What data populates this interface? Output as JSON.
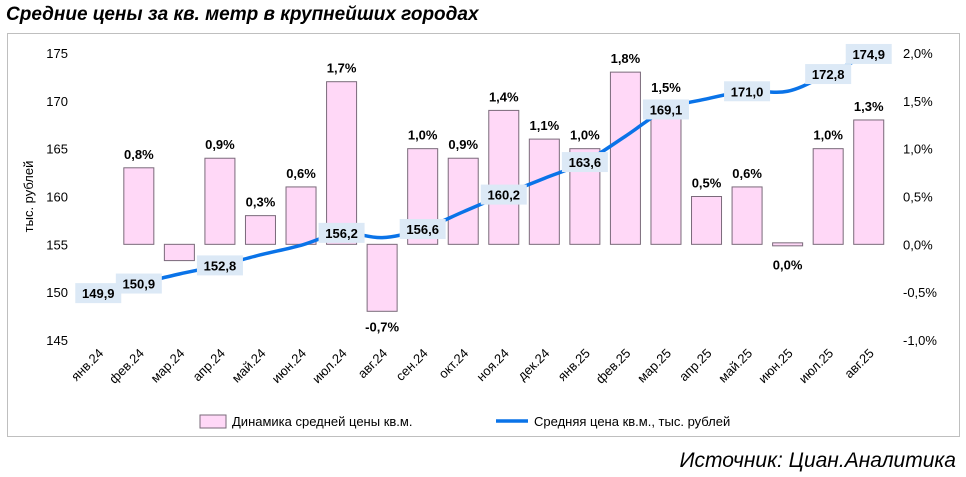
{
  "title": "Средние цены за кв. метр в крупнейших городах",
  "source": "Источник: Циан.Аналитика",
  "colors": {
    "bar_fill": "#ffd8f7",
    "bar_stroke": "#7a6a7a",
    "line": "#0a73e8",
    "label_bg": "#dce9f6"
  },
  "chart_data": {
    "type": "bar",
    "categories": [
      "янв.24",
      "фев.24",
      "мар.24",
      "апр.24",
      "май.24",
      "июн.24",
      "июл.24",
      "авг.24",
      "сен.24",
      "окт.24",
      "ноя.24",
      "дек.24",
      "янв.25",
      "фев.25",
      "мар.25",
      "апр.25",
      "май.25",
      "июн.25",
      "июл.25",
      "авг.25"
    ],
    "ylabel": "тыс. рублей",
    "ylim": [
      145,
      175
    ],
    "yticks": [
      "145",
      "150",
      "155",
      "160",
      "165",
      "170",
      "175"
    ],
    "y2lim": [
      -1.0,
      2.0
    ],
    "y2ticks": [
      "-1,0%",
      "-0,5%",
      "0,0%",
      "0,5%",
      "1,0%",
      "1,5%",
      "2,0%"
    ],
    "legend_position": "bottom",
    "grid": false,
    "series": [
      {
        "name": "Динамика средней цены кв.м.",
        "kind": "bar",
        "axis": "right",
        "values": [
          null,
          0.8,
          -0.17,
          0.9,
          0.3,
          0.6,
          1.7,
          -0.7,
          1.0,
          0.9,
          1.4,
          1.1,
          1.0,
          1.8,
          1.5,
          0.5,
          0.6,
          0.0,
          1.0,
          1.3
        ],
        "labels": [
          "",
          "0,8%",
          "",
          "0,9%",
          "0,3%",
          "0,6%",
          "1,7%",
          "-0,7%",
          "1,0%",
          "0,9%",
          "1,4%",
          "1,1%",
          "1,0%",
          "1,8%",
          "1,5%",
          "0,5%",
          "0,6%",
          "0,0%",
          "1,0%",
          "1,3%"
        ]
      },
      {
        "name": "Средняя цена кв.м., тыс. рублей",
        "kind": "line",
        "axis": "left",
        "values": [
          149.9,
          150.9,
          151.9,
          152.8,
          153.9,
          154.9,
          156.2,
          155.7,
          156.6,
          158.4,
          160.2,
          161.9,
          163.6,
          166.3,
          169.1,
          170.2,
          171.0,
          171.0,
          172.8,
          174.9
        ],
        "labels": [
          "149,9",
          "150,9",
          "",
          "152,8",
          "",
          "",
          "156,2",
          "",
          "156,6",
          "",
          "160,2",
          "",
          "163,6",
          "",
          "169,1",
          "",
          "171,0",
          "",
          "172,8",
          "174,9"
        ]
      }
    ]
  }
}
